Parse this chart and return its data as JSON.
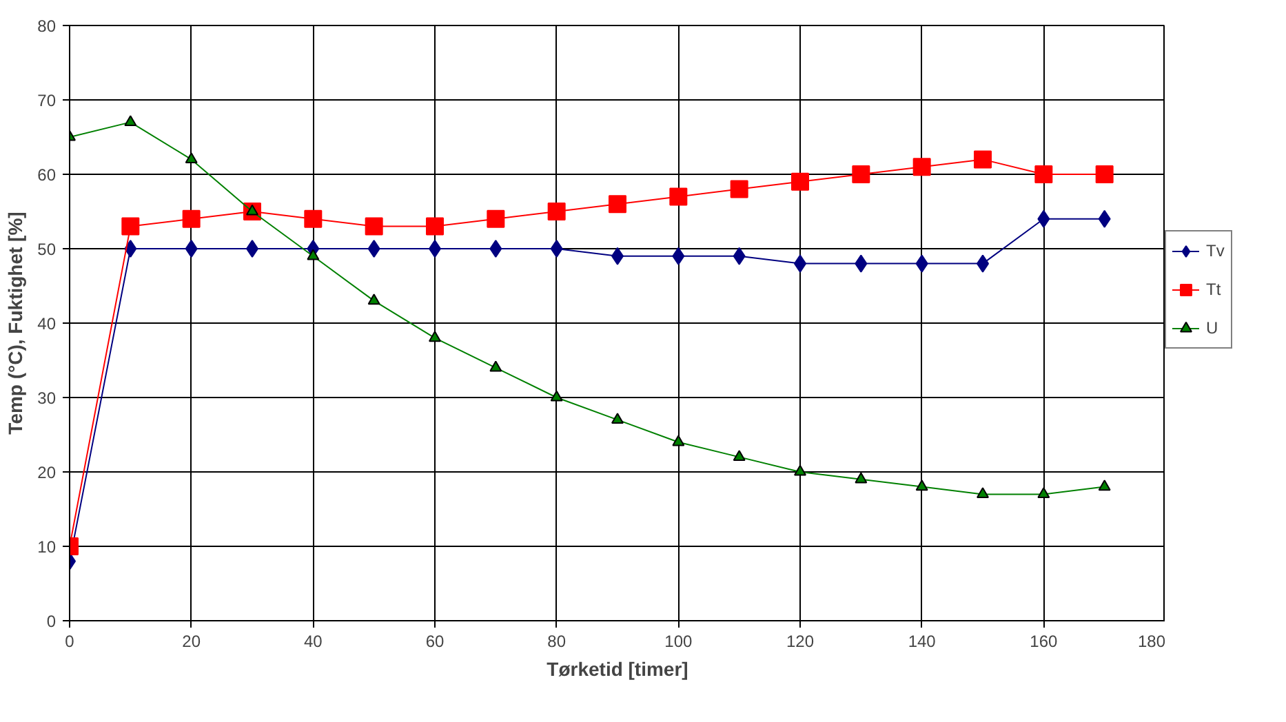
{
  "chart_data": {
    "type": "line",
    "xlabel": "Tørketid [timer]",
    "ylabel": "Temp (°C), Fuktighet [%]",
    "x": [
      0,
      10,
      20,
      30,
      40,
      50,
      60,
      70,
      80,
      90,
      100,
      110,
      120,
      130,
      140,
      150,
      160,
      170
    ],
    "series": [
      {
        "name": "Tv",
        "color": "#000080",
        "marker": "diamond",
        "values": [
          8,
          50,
          50,
          50,
          50,
          50,
          50,
          50,
          50,
          49,
          49,
          49,
          48,
          48,
          48,
          48,
          54,
          54
        ]
      },
      {
        "name": "Tt",
        "color": "#ff0000",
        "marker": "square",
        "values": [
          10,
          53,
          54,
          55,
          54,
          53,
          53,
          54,
          55,
          56,
          57,
          58,
          59,
          60,
          61,
          62,
          60,
          60
        ]
      },
      {
        "name": "U",
        "color": "#008000",
        "marker": "triangle",
        "values": [
          65,
          67,
          62,
          55,
          49,
          43,
          38,
          34,
          30,
          27,
          24,
          22,
          20,
          19,
          18,
          17,
          17,
          18
        ]
      }
    ],
    "xlim": [
      0,
      180
    ],
    "xticks": [
      0,
      20,
      40,
      60,
      80,
      100,
      120,
      140,
      160,
      180
    ],
    "ylim": [
      0,
      80
    ],
    "yticks": [
      0,
      10,
      20,
      30,
      40,
      50,
      60,
      70,
      80
    ],
    "grid": true,
    "legend": "right",
    "line_style": "solid"
  }
}
